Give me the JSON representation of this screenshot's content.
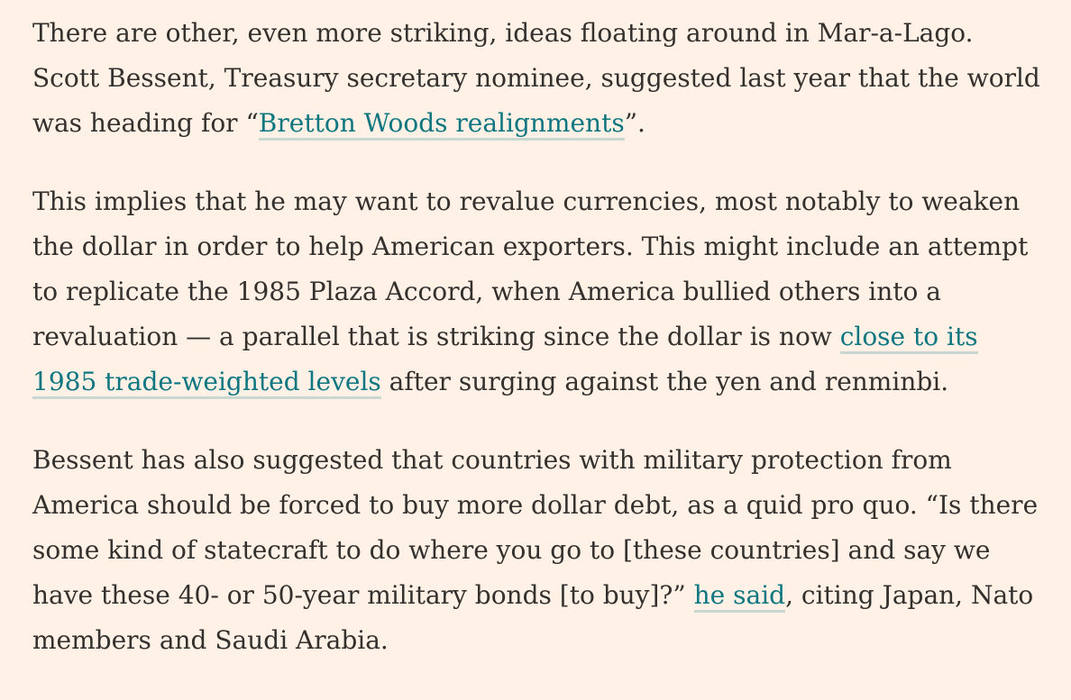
{
  "paragraphs": [
    {
      "segments": [
        {
          "text": "There are other, even more striking, ideas floating around in Mar-a-Lago. Scott Bessent, Treasury secretary nominee, suggested last year that the world was heading for “"
        },
        {
          "text": "Bretton Woods realignments",
          "link": true
        },
        {
          "text": "”."
        }
      ]
    },
    {
      "segments": [
        {
          "text": "This implies that he may want to revalue currencies, most notably to weaken the dollar in order to help American exporters. This might include an attempt to replicate the 1985 Plaza Accord, when America bullied others into a revaluation — a parallel that is striking since the dollar is now "
        },
        {
          "text": "close to its 1985 trade-weighted levels",
          "link": true
        },
        {
          "text": " after surging against the yen and renminbi."
        }
      ]
    },
    {
      "segments": [
        {
          "text": "Bessent has also suggested that countries with military protection from America should be forced to buy more dollar debt, as a quid pro quo. “Is there some kind of statecraft to do where you go to [these countries] and say we have these 40- or 50-year military bonds [to buy]?” "
        },
        {
          "text": "he said",
          "link": true
        },
        {
          "text": ", citing Japan, Nato members and Saudi Arabia."
        }
      ]
    }
  ],
  "colors": {
    "background": "#fff1e5",
    "text": "#33302e",
    "link": "#0d7680",
    "link_underline": "#c9d7d3"
  }
}
